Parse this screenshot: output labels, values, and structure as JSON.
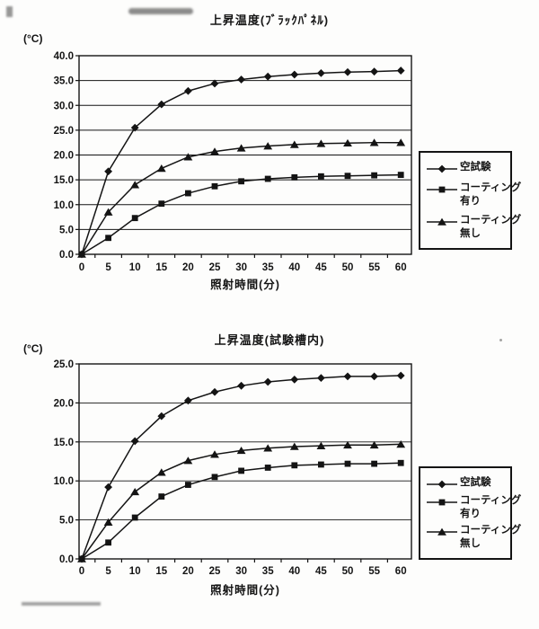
{
  "colors": {
    "ink": "#141414",
    "paper": "#fdfdfc"
  },
  "chart_data": [
    {
      "type": "line",
      "title": "上昇温度(ﾌﾞﾗｯｸﾊﾟﾈﾙ)",
      "ylabel": "(°C)",
      "xlabel": "照射時間(分)",
      "x": [
        0,
        5,
        10,
        15,
        20,
        25,
        30,
        35,
        40,
        45,
        50,
        55,
        60
      ],
      "ylim": [
        0.0,
        40.0
      ],
      "ytick_step": 5.0,
      "grid": true,
      "legend_position": "right",
      "series": [
        {
          "name": "空試験",
          "label_lines": [
            "空試験"
          ],
          "marker": "diamond",
          "values": [
            0,
            16.7,
            25.5,
            30.2,
            32.9,
            34.4,
            35.2,
            35.8,
            36.2,
            36.5,
            36.7,
            36.8,
            37.0
          ]
        },
        {
          "name": "コーティング有り",
          "label_lines": [
            "コーティング",
            "有り"
          ],
          "marker": "square",
          "values": [
            0,
            3.3,
            7.3,
            10.2,
            12.3,
            13.7,
            14.7,
            15.2,
            15.5,
            15.7,
            15.8,
            15.9,
            16.0
          ]
        },
        {
          "name": "コーティング無し",
          "label_lines": [
            "コーティング",
            "無し"
          ],
          "marker": "triangle",
          "values": [
            0,
            8.5,
            14.0,
            17.3,
            19.6,
            20.7,
            21.4,
            21.8,
            22.1,
            22.3,
            22.4,
            22.5,
            22.5
          ]
        }
      ]
    },
    {
      "type": "line",
      "title": "上昇温度(試験槽内)",
      "ylabel": "(°C)",
      "xlabel": "照射時間(分)",
      "x": [
        0,
        5,
        10,
        15,
        20,
        25,
        30,
        35,
        40,
        45,
        50,
        55,
        60
      ],
      "ylim": [
        0.0,
        25.0
      ],
      "ytick_step": 5.0,
      "grid": true,
      "legend_position": "right",
      "series": [
        {
          "name": "空試験",
          "label_lines": [
            "空試験"
          ],
          "marker": "diamond",
          "values": [
            0,
            9.2,
            15.1,
            18.3,
            20.3,
            21.4,
            22.2,
            22.7,
            23.0,
            23.2,
            23.4,
            23.4,
            23.5
          ]
        },
        {
          "name": "コーティング有り",
          "label_lines": [
            "コーティング",
            "有り"
          ],
          "marker": "square",
          "values": [
            0,
            2.1,
            5.3,
            8.0,
            9.5,
            10.5,
            11.3,
            11.7,
            12.0,
            12.1,
            12.2,
            12.2,
            12.3
          ]
        },
        {
          "name": "コーティング無し",
          "label_lines": [
            "コーティング",
            "無し"
          ],
          "marker": "triangle",
          "values": [
            0,
            4.7,
            8.6,
            11.1,
            12.6,
            13.4,
            13.9,
            14.2,
            14.4,
            14.5,
            14.6,
            14.6,
            14.7
          ]
        }
      ]
    }
  ]
}
